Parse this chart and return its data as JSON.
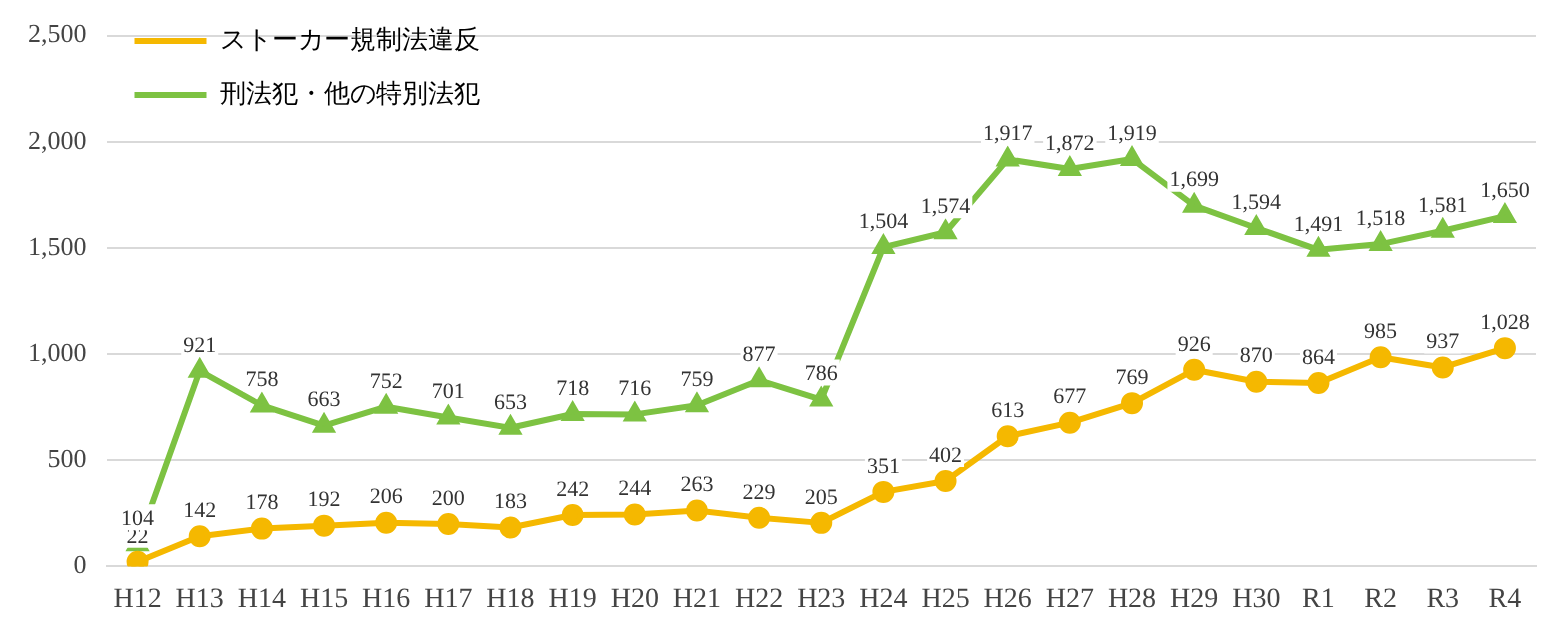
{
  "chart_data": {
    "type": "line",
    "categories": [
      "H12",
      "H13",
      "H14",
      "H15",
      "H16",
      "H17",
      "H18",
      "H19",
      "H20",
      "H21",
      "H22",
      "H23",
      "H24",
      "H25",
      "H26",
      "H27",
      "H28",
      "H29",
      "H30",
      "R1",
      "R2",
      "R3",
      "R4"
    ],
    "series": [
      {
        "name": "ストーカー規制法違反",
        "color": "#f5b800",
        "marker": "circle",
        "values": [
          22,
          142,
          178,
          192,
          206,
          200,
          183,
          242,
          244,
          263,
          229,
          205,
          351,
          402,
          613,
          677,
          769,
          926,
          870,
          864,
          985,
          937,
          1028
        ],
        "value_labels": [
          "22",
          "142",
          "178",
          "192",
          "206",
          "200",
          "183",
          "242",
          "244",
          "263",
          "229",
          "205",
          "351",
          "402",
          "613",
          "677",
          "769",
          "926",
          "870",
          "864",
          "985",
          "937",
          "1,028"
        ]
      },
      {
        "name": "刑法犯・他の特別法犯",
        "color": "#7dc242",
        "marker": "triangle",
        "values": [
          104,
          921,
          758,
          663,
          752,
          701,
          653,
          718,
          716,
          759,
          877,
          786,
          1504,
          1574,
          1917,
          1872,
          1919,
          1699,
          1594,
          1491,
          1518,
          1581,
          1650
        ],
        "value_labels": [
          "104",
          "921",
          "758",
          "663",
          "752",
          "701",
          "653",
          "718",
          "716",
          "759",
          "877",
          "786",
          "1,504",
          "1,574",
          "1,917",
          "1,872",
          "1,919",
          "1,699",
          "1,594",
          "1,491",
          "1,518",
          "1,581",
          "1,650"
        ]
      }
    ],
    "ylim": [
      0,
      2500
    ],
    "yticks": [
      0,
      500,
      {
        "value": 1000,
        "label": "1,000"
      },
      {
        "value": 1500,
        "label": "1,500"
      },
      {
        "value": 2000,
        "label": "2,000"
      },
      {
        "value": 2500,
        "label": "2,500"
      }
    ],
    "grid": "y",
    "legend": "top left"
  }
}
